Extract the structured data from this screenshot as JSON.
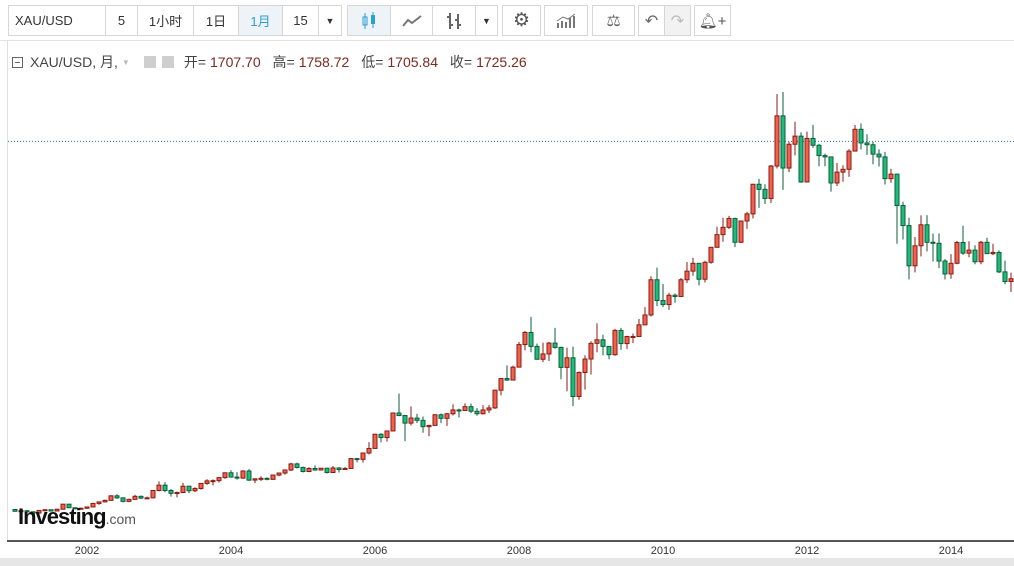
{
  "toolbar": {
    "symbol": "XAU/USD",
    "intervals": [
      "5",
      "1小时",
      "1日",
      "1月"
    ],
    "active_interval": "1月",
    "bars_count": "15"
  },
  "legend": {
    "title": "XAU/USD, 月,",
    "open_label": "开=",
    "open": "1707.70",
    "high_label": "高=",
    "high": "1758.72",
    "low_label": "低=",
    "low": "1705.84",
    "close_label": "收=",
    "close": "1725.26"
  },
  "logo": {
    "main": "Investing",
    "suffix": ".com"
  },
  "colors": {
    "up": "#f0614f",
    "up_border": "#8b1a10",
    "down": "#1cbd7a",
    "down_border": "#0b5e3a",
    "price_line": "#2a6fb0"
  },
  "chart_data": {
    "type": "candlestick",
    "interval": "monthly",
    "start": "2001-01",
    "x_tick_labels": [
      "2002",
      "2004",
      "2006",
      "2008",
      "2010",
      "2012",
      "2014"
    ],
    "price_line": 1725.26,
    "initial_open": 272,
    "close": [
      265,
      267,
      263,
      258,
      268,
      271,
      266,
      273,
      293,
      279,
      275,
      277,
      282,
      296,
      302,
      308,
      326,
      318,
      304,
      312,
      324,
      317,
      318,
      347,
      368,
      347,
      336,
      339,
      364,
      346,
      355,
      375,
      385,
      386,
      398,
      417,
      400,
      396,
      424,
      388,
      393,
      395,
      391,
      408,
      416,
      428,
      452,
      438,
      422,
      434,
      428,
      435,
      418,
      436,
      430,
      434,
      473,
      470,
      495,
      513,
      569,
      556,
      582,
      653,
      643,
      613,
      633,
      624,
      599,
      604,
      646,
      632,
      650,
      665,
      663,
      678,
      660,
      650,
      665,
      673,
      743,
      789,
      783,
      834,
      923,
      971,
      916,
      865,
      886,
      929,
      912,
      833,
      871,
      718,
      813,
      866,
      928,
      942,
      916,
      883,
      979,
      927,
      955,
      955,
      1001,
      1040,
      1179,
      1097,
      1081,
      1118,
      1113,
      1179,
      1213,
      1244,
      1181,
      1248,
      1307,
      1357,
      1386,
      1421,
      1327,
      1411,
      1439,
      1556,
      1536,
      1500,
      1628,
      1826,
      1620,
      1714,
      1746,
      1565,
      1737,
      1710,
      1669,
      1664,
      1561,
      1604,
      1615,
      1687,
      1773,
      1719,
      1712,
      1675,
      1664,
      1578,
      1596,
      1472,
      1393,
      1234,
      1313,
      1396,
      1327,
      1323,
      1253,
      1202,
      1244,
      1326,
      1284,
      1296,
      1250,
      1327,
      1282,
      1287,
      1210,
      1172,
      1183,
      1199
    ],
    "high": [
      272,
      268,
      270,
      264,
      270,
      274,
      272,
      276,
      294,
      294,
      280,
      280,
      283,
      298,
      303,
      311,
      328,
      332,
      320,
      315,
      330,
      327,
      323,
      349,
      383,
      380,
      353,
      343,
      377,
      366,
      360,
      376,
      392,
      391,
      399,
      417,
      427,
      419,
      427,
      432,
      395,
      403,
      399,
      410,
      418,
      430,
      456,
      457,
      441,
      439,
      446,
      436,
      433,
      443,
      439,
      440,
      475,
      476,
      497,
      538,
      571,
      573,
      584,
      654,
      730,
      640,
      679,
      650,
      639,
      606,
      648,
      651,
      653,
      687,
      670,
      691,
      690,
      672,
      684,
      685,
      744,
      790,
      841,
      840,
      933,
      977,
      1033,
      927,
      931,
      933,
      989,
      915,
      911,
      915,
      817,
      881,
      936,
      1007,
      962,
      917,
      985,
      989,
      958,
      967,
      1024,
      1071,
      1193,
      1227,
      1162,
      1127,
      1125,
      1186,
      1249,
      1266,
      1212,
      1254,
      1308,
      1388,
      1424,
      1431,
      1424,
      1411,
      1447,
      1557,
      1577,
      1556,
      1632,
      1912,
      1920,
      1724,
      1803,
      1761,
      1764,
      1791,
      1716,
      1677,
      1665,
      1640,
      1631,
      1694,
      1790,
      1796,
      1754,
      1723,
      1694,
      1684,
      1617,
      1597,
      1487,
      1424,
      1348,
      1433,
      1434,
      1361,
      1362,
      1261,
      1280,
      1332,
      1392,
      1331,
      1315,
      1332,
      1345,
      1321,
      1295,
      1255,
      1207,
      1239
    ],
    "low": [
      263,
      255,
      262,
      255,
      256,
      265,
      265,
      264,
      272,
      278,
      272,
      273,
      275,
      281,
      290,
      300,
      307,
      314,
      300,
      301,
      311,
      313,
      315,
      316,
      343,
      340,
      323,
      320,
      339,
      336,
      341,
      350,
      369,
      367,
      378,
      393,
      398,
      390,
      393,
      384,
      376,
      384,
      387,
      390,
      403,
      409,
      424,
      434,
      418,
      419,
      425,
      426,
      414,
      416,
      418,
      430,
      434,
      458,
      457,
      489,
      513,
      537,
      540,
      581,
      640,
      542,
      604,
      613,
      575,
      561,
      604,
      613,
      602,
      643,
      635,
      662,
      652,
      642,
      647,
      653,
      669,
      722,
      780,
      784,
      840,
      900,
      893,
      864,
      854,
      858,
      907,
      786,
      739,
      680,
      705,
      745,
      805,
      893,
      880,
      865,
      879,
      902,
      906,
      929,
      953,
      1000,
      1034,
      1075,
      1071,
      1060,
      1088,
      1114,
      1166,
      1195,
      1157,
      1168,
      1242,
      1311,
      1329,
      1379,
      1308,
      1324,
      1380,
      1421,
      1463,
      1478,
      1482,
      1618,
      1534,
      1604,
      1670,
      1562,
      1563,
      1700,
      1627,
      1627,
      1527,
      1549,
      1566,
      1585,
      1687,
      1693,
      1672,
      1635,
      1626,
      1555,
      1562,
      1321,
      1338,
      1180,
      1208,
      1271,
      1291,
      1251,
      1225,
      1180,
      1183,
      1240,
      1277,
      1268,
      1240,
      1240,
      1281,
      1276,
      1205,
      1161,
      1131,
      1170
    ]
  }
}
